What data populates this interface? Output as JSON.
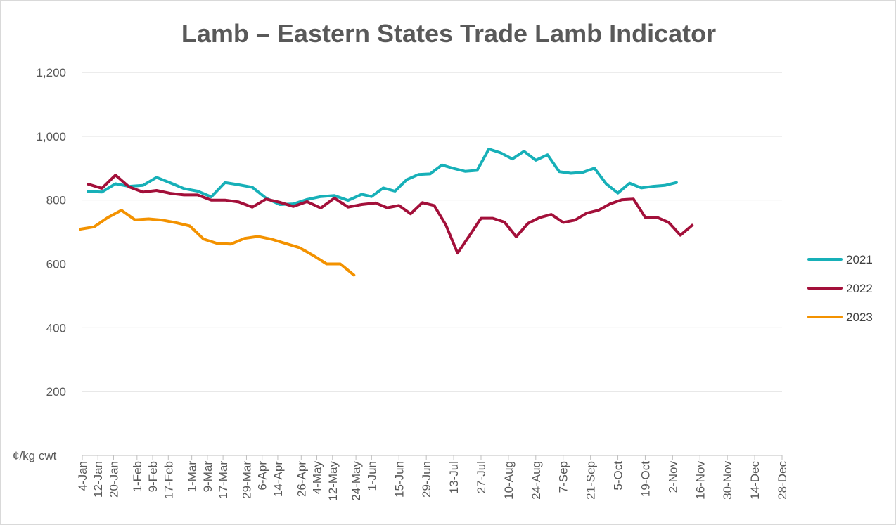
{
  "chart_data": {
    "type": "line",
    "title": "Lamb – Eastern States Trade Lamb Indicator",
    "ylabel": "¢/kg cwt",
    "ylim": [
      0,
      1200
    ],
    "yticks": [
      {
        "value": 200,
        "label": "200"
      },
      {
        "value": 400,
        "label": "400"
      },
      {
        "value": 600,
        "label": "600"
      },
      {
        "value": 800,
        "label": "800"
      },
      {
        "value": 1000,
        "label": "1,000"
      },
      {
        "value": 1200,
        "label": "1,200"
      }
    ],
    "x_unit": "day of year",
    "xlim": [
      4,
      362
    ],
    "xticks": [
      {
        "value": 4,
        "label": "4-Jan"
      },
      {
        "value": 12,
        "label": "12-Jan"
      },
      {
        "value": 20,
        "label": "20-Jan"
      },
      {
        "value": 32,
        "label": "1-Feb"
      },
      {
        "value": 40,
        "label": "9-Feb"
      },
      {
        "value": 48,
        "label": "17-Feb"
      },
      {
        "value": 60,
        "label": "1-Mar"
      },
      {
        "value": 68,
        "label": "9-Mar"
      },
      {
        "value": 76,
        "label": "17-Mar"
      },
      {
        "value": 88,
        "label": "29-Mar"
      },
      {
        "value": 96,
        "label": "6-Apr"
      },
      {
        "value": 104,
        "label": "14-Apr"
      },
      {
        "value": 116,
        "label": "26-Apr"
      },
      {
        "value": 124,
        "label": "4-May"
      },
      {
        "value": 132,
        "label": "12-May"
      },
      {
        "value": 144,
        "label": "24-May"
      },
      {
        "value": 152,
        "label": "1-Jun"
      },
      {
        "value": 166,
        "label": "15-Jun"
      },
      {
        "value": 180,
        "label": "29-Jun"
      },
      {
        "value": 194,
        "label": "13-Jul"
      },
      {
        "value": 208,
        "label": "27-Jul"
      },
      {
        "value": 222,
        "label": "10-Aug"
      },
      {
        "value": 236,
        "label": "24-Aug"
      },
      {
        "value": 250,
        "label": "7-Sep"
      },
      {
        "value": 264,
        "label": "21-Sep"
      },
      {
        "value": 278,
        "label": "5-Oct"
      },
      {
        "value": 292,
        "label": "19-Oct"
      },
      {
        "value": 306,
        "label": "2-Nov"
      },
      {
        "value": 320,
        "label": "16-Nov"
      },
      {
        "value": 334,
        "label": "30-Nov"
      },
      {
        "value": 348,
        "label": "14-Dec"
      },
      {
        "value": 362,
        "label": "28-Dec"
      }
    ],
    "grid": true,
    "legend_position": "right",
    "series": [
      {
        "name": "2021",
        "color": "#17b0b8",
        "points": [
          [
            7,
            827
          ],
          [
            14,
            825
          ],
          [
            21,
            851
          ],
          [
            28,
            843
          ],
          [
            35,
            846
          ],
          [
            42,
            871
          ],
          [
            49,
            854
          ],
          [
            56,
            836
          ],
          [
            63,
            828
          ],
          [
            70,
            810
          ],
          [
            77,
            855
          ],
          [
            84,
            848
          ],
          [
            91,
            840
          ],
          [
            98,
            806
          ],
          [
            105,
            786
          ],
          [
            112,
            788
          ],
          [
            119,
            802
          ],
          [
            126,
            811
          ],
          [
            133,
            814
          ],
          [
            140,
            799
          ],
          [
            147,
            818
          ],
          [
            152,
            811
          ],
          [
            158,
            838
          ],
          [
            164,
            828
          ],
          [
            170,
            864
          ],
          [
            176,
            880
          ],
          [
            182,
            882
          ],
          [
            188,
            910
          ],
          [
            194,
            899
          ],
          [
            200,
            890
          ],
          [
            206,
            893
          ],
          [
            212,
            960
          ],
          [
            218,
            948
          ],
          [
            224,
            929
          ],
          [
            230,
            953
          ],
          [
            236,
            925
          ],
          [
            242,
            942
          ],
          [
            248,
            889
          ],
          [
            254,
            884
          ],
          [
            260,
            887
          ],
          [
            266,
            900
          ],
          [
            272,
            851
          ],
          [
            278,
            822
          ],
          [
            284,
            853
          ],
          [
            290,
            838
          ],
          [
            296,
            843
          ],
          [
            302,
            846
          ],
          [
            308,
            855
          ]
        ]
      },
      {
        "name": "2022",
        "color": "#a3103a",
        "points": [
          [
            7,
            850
          ],
          [
            14,
            837
          ],
          [
            21,
            878
          ],
          [
            28,
            841
          ],
          [
            35,
            825
          ],
          [
            42,
            830
          ],
          [
            49,
            821
          ],
          [
            56,
            816
          ],
          [
            63,
            816
          ],
          [
            70,
            800
          ],
          [
            77,
            800
          ],
          [
            84,
            794
          ],
          [
            91,
            778
          ],
          [
            98,
            803
          ],
          [
            105,
            793
          ],
          [
            112,
            780
          ],
          [
            119,
            795
          ],
          [
            126,
            775
          ],
          [
            133,
            806
          ],
          [
            140,
            778
          ],
          [
            147,
            786
          ],
          [
            154,
            791
          ],
          [
            160,
            776
          ],
          [
            166,
            783
          ],
          [
            172,
            757
          ],
          [
            178,
            792
          ],
          [
            184,
            783
          ],
          [
            190,
            722
          ],
          [
            196,
            634
          ],
          [
            202,
            688
          ],
          [
            208,
            743
          ],
          [
            214,
            743
          ],
          [
            220,
            731
          ],
          [
            226,
            685
          ],
          [
            232,
            727
          ],
          [
            238,
            745
          ],
          [
            244,
            755
          ],
          [
            250,
            730
          ],
          [
            256,
            737
          ],
          [
            262,
            759
          ],
          [
            268,
            768
          ],
          [
            274,
            788
          ],
          [
            280,
            801
          ],
          [
            286,
            803
          ],
          [
            292,
            746
          ],
          [
            298,
            746
          ],
          [
            304,
            730
          ],
          [
            310,
            690
          ],
          [
            316,
            721
          ]
        ]
      },
      {
        "name": "2023",
        "color": "#f39200",
        "points": [
          [
            3,
            709
          ],
          [
            10,
            716
          ],
          [
            17,
            745
          ],
          [
            24,
            768
          ],
          [
            31,
            738
          ],
          [
            38,
            741
          ],
          [
            45,
            737
          ],
          [
            52,
            729
          ],
          [
            59,
            719
          ],
          [
            66,
            678
          ],
          [
            73,
            664
          ],
          [
            80,
            662
          ],
          [
            87,
            680
          ],
          [
            94,
            686
          ],
          [
            101,
            677
          ],
          [
            108,
            664
          ],
          [
            115,
            651
          ],
          [
            122,
            627
          ],
          [
            129,
            600
          ],
          [
            136,
            600
          ],
          [
            143,
            565
          ]
        ]
      }
    ]
  }
}
